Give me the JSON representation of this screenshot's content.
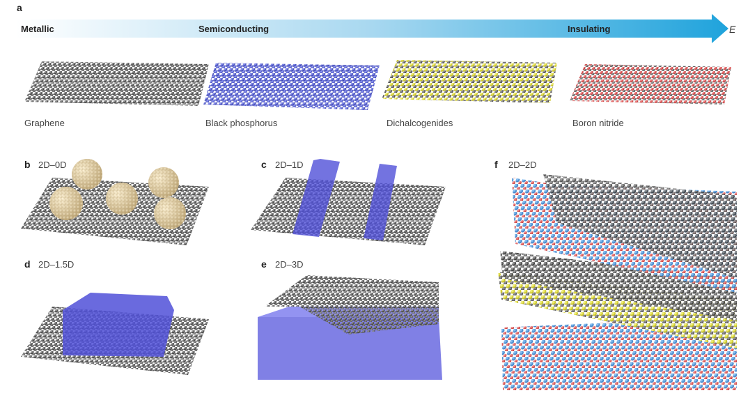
{
  "panel_a": {
    "letter": "a",
    "scale": [
      "Metallic",
      "Semiconducting",
      "Insulating"
    ],
    "axis_symbol": "E",
    "materials": [
      "Graphene",
      "Black phosphorus",
      "Dichalcogenides",
      "Boron nitride"
    ]
  },
  "panels": [
    {
      "letter": "b",
      "label": "2D–0D"
    },
    {
      "letter": "c",
      "label": "2D–1D"
    },
    {
      "letter": "d",
      "label": "2D–1.5D"
    },
    {
      "letter": "e",
      "label": "2D–3D"
    },
    {
      "letter": "f",
      "label": "2D–2D"
    }
  ]
}
